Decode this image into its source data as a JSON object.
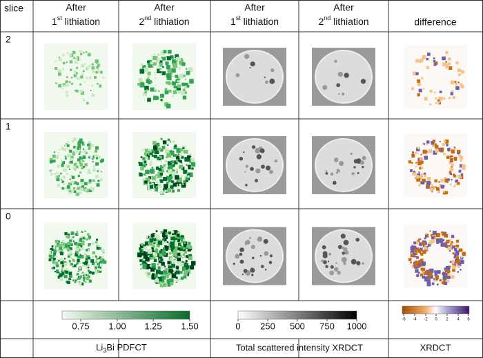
{
  "header": {
    "corner": "slice",
    "columns": [
      {
        "line1": "After",
        "num": "1",
        "sup": "st",
        "rest": " lithiation"
      },
      {
        "line1": "After",
        "num": "2",
        "sup": "nd",
        "rest": " lithiation"
      },
      {
        "line1": "After",
        "num": "1",
        "sup": "st",
        "rest": " lithiation"
      },
      {
        "line1": "After",
        "num": "2",
        "sup": "nd",
        "rest": " lithiation"
      },
      {
        "line1": "difference"
      }
    ]
  },
  "rows": [
    "2",
    "1",
    "0"
  ],
  "colorbars": [
    {
      "ticks": [
        "0.75",
        "1.00",
        "1.25",
        "1.50"
      ]
    },
    {
      "ticks": [
        "0",
        "250",
        "500",
        "750",
        "1000"
      ]
    },
    {
      "ticks": [
        "-6",
        "-4",
        "-2",
        "0",
        "2",
        "4",
        "6"
      ]
    }
  ],
  "footer": {
    "pdfct": {
      "pre": "Li",
      "sub": "3",
      "post": "Bi PDFCT"
    },
    "total": "Total scattered intensity XRDCT",
    "xrdct": "XRDCT"
  }
}
